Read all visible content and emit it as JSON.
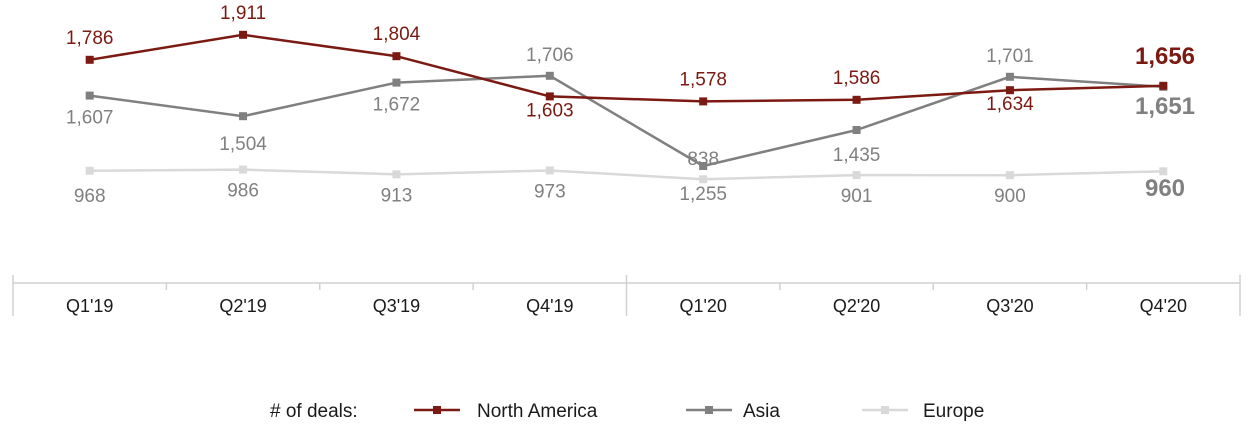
{
  "chart_data": {
    "type": "line",
    "categories": [
      "Q1'19",
      "Q2'19",
      "Q3'19",
      "Q4'19",
      "Q1'20",
      "Q2'20",
      "Q3'20",
      "Q4'20"
    ],
    "series": [
      {
        "name": "North America",
        "color": "#7b1a12",
        "values": [
          1786,
          1911,
          1804,
          1603,
          1578,
          1586,
          1634,
          1656
        ],
        "labels": [
          "1,786",
          "1,911",
          "1,804",
          "1,603",
          "1,578",
          "1,586",
          "1,634",
          "1,656"
        ]
      },
      {
        "name": "Asia",
        "color": "#808080",
        "values": [
          1607,
          1504,
          1672,
          1706,
          1255,
          1435,
          1701,
          1651
        ],
        "labels": [
          "1,607",
          "1,504",
          "1,672",
          "1,706",
          "1,255",
          "1,435",
          "1,701",
          "1,651"
        ]
      },
      {
        "name": "Europe",
        "color": "#d9d9d9",
        "values": [
          968,
          986,
          913,
          973,
          838,
          901,
          900,
          960
        ],
        "labels": [
          "968",
          "986",
          "913",
          "973",
          "838",
          "901",
          "900",
          "960"
        ]
      }
    ],
    "legend_title": "# of deals:",
    "legend_position": "bottom",
    "grid": false
  }
}
